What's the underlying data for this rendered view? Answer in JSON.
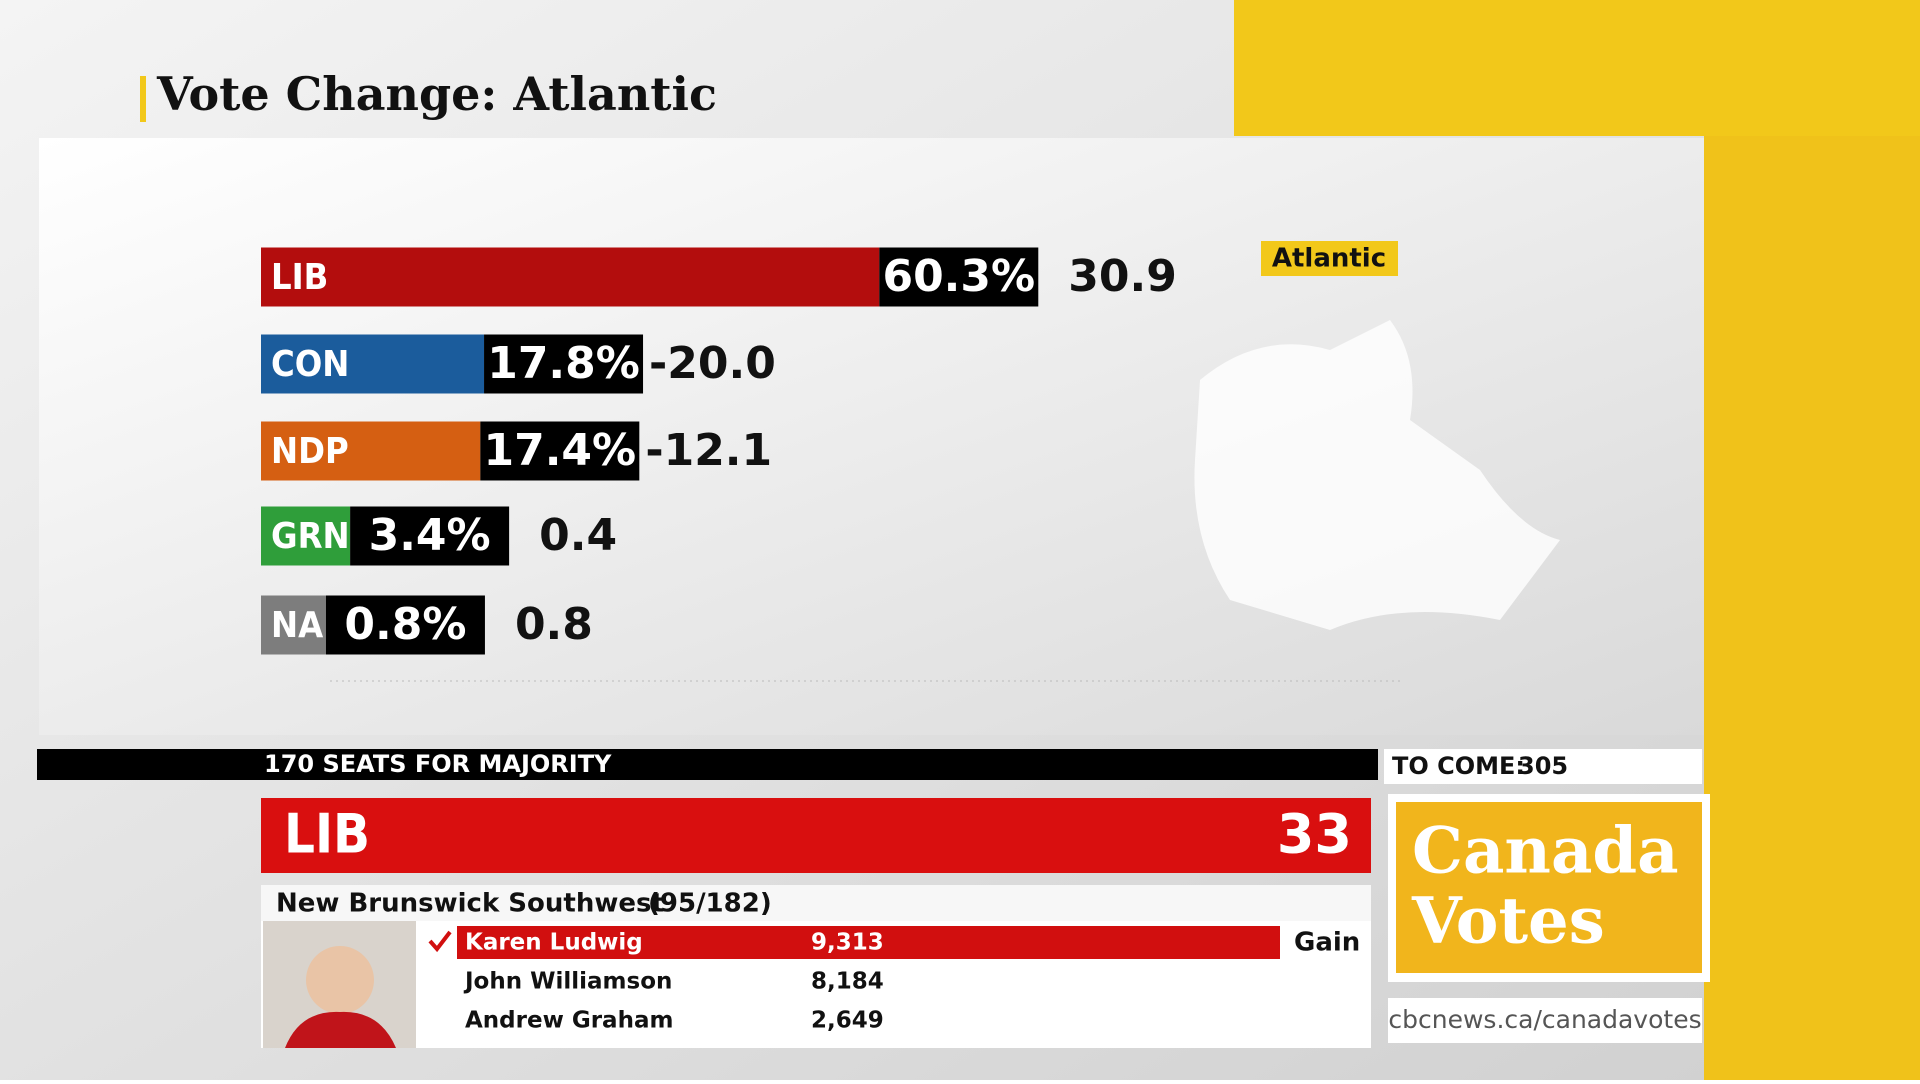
{
  "chart_data": {
    "type": "bar",
    "title": "Vote Change: Atlantic",
    "region": "Atlantic",
    "categories": [
      "LIB",
      "CON",
      "NDP",
      "GRN",
      "NA"
    ],
    "colors": [
      "#b30d0d",
      "#1b5c9c",
      "#d55f12",
      "#2f9e3a",
      "#7d7d7d"
    ],
    "values": [
      60.3,
      17.8,
      17.4,
      3.4,
      0.8
    ],
    "value_labels": [
      "60.3%",
      "17.8%",
      "17.4%",
      "3.4%",
      "0.8%"
    ],
    "changes": [
      30.9,
      -20.0,
      -12.1,
      0.4,
      0.8
    ],
    "change_labels": [
      "30.9",
      "-20.0",
      "-12.1",
      "0.4",
      "0.8"
    ]
  },
  "ticker": {
    "majority": "170 SEATS FOR MAJORITY",
    "to_come_label": "TO COME:",
    "to_come": 305,
    "leader_party": "LIB",
    "leader_seats": 33
  },
  "riding": {
    "name": "New Brunswick Southwest",
    "polls": "(95/182)",
    "candidates": [
      {
        "name": "Karen Ludwig",
        "votes": "9,313",
        "status": "Gain"
      },
      {
        "name": "John Williamson",
        "votes": "8,184"
      },
      {
        "name": "Andrew Graham",
        "votes": "2,649"
      }
    ]
  },
  "logo": {
    "line1": "Canada",
    "line2": "Votes",
    "url": "cbcnews.ca/canadavotes"
  }
}
